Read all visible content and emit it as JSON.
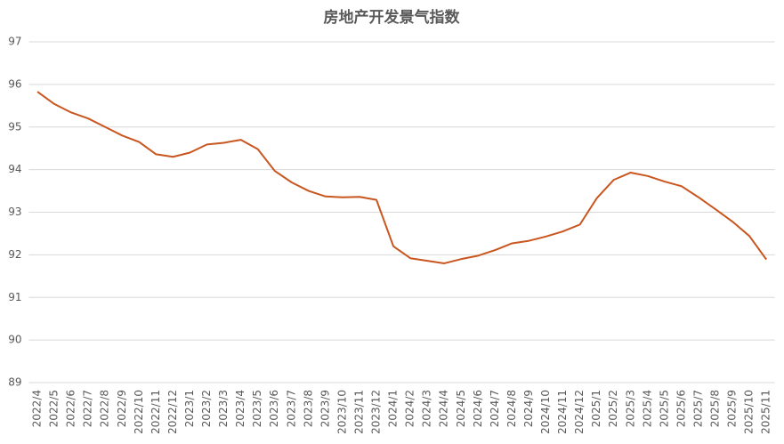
{
  "chart_data": {
    "type": "line",
    "title": "房地产开发景气指数",
    "categories": [
      "2022/4",
      "2022/5",
      "2022/6",
      "2022/7",
      "2022/8",
      "2022/9",
      "2022/10",
      "2022/11",
      "2022/12",
      "2023/1",
      "2023/2",
      "2023/3",
      "2023/4",
      "2023/5",
      "2023/6",
      "2023/7",
      "2023/8",
      "2023/9",
      "2023/10",
      "2023/11",
      "2023/12",
      "2024/1",
      "2024/2",
      "2024/3",
      "2024/4",
      "2024/5",
      "2024/6",
      "2024/7",
      "2024/8",
      "2024/9",
      "2024/10",
      "2024/11",
      "2024/12",
      "2025/1",
      "2025/2",
      "2025/3",
      "2025/4",
      "2025/5",
      "2025/6",
      "2025/7",
      "2025/8",
      "2025/9",
      "2025/10",
      "2025/11"
    ],
    "series": [
      {
        "name": "房地产开发景气指数",
        "color": "#c8561e",
        "values": [
          95.83,
          95.54,
          95.34,
          95.2,
          95.0,
          94.8,
          94.65,
          94.36,
          94.3,
          94.4,
          94.59,
          94.63,
          94.7,
          94.48,
          93.97,
          93.7,
          93.5,
          93.37,
          93.35,
          93.36,
          93.29,
          92.2,
          91.92,
          91.86,
          91.8,
          91.9,
          91.98,
          92.11,
          92.27,
          92.33,
          92.43,
          92.55,
          92.71,
          93.33,
          93.76,
          93.93,
          93.85,
          93.72,
          93.61,
          93.35,
          93.07,
          92.78,
          92.44,
          91.89
        ]
      }
    ],
    "ylim": [
      89,
      97
    ],
    "yticks": [
      89,
      90,
      91,
      92,
      93,
      94,
      95,
      96,
      97
    ],
    "grid": true
  }
}
